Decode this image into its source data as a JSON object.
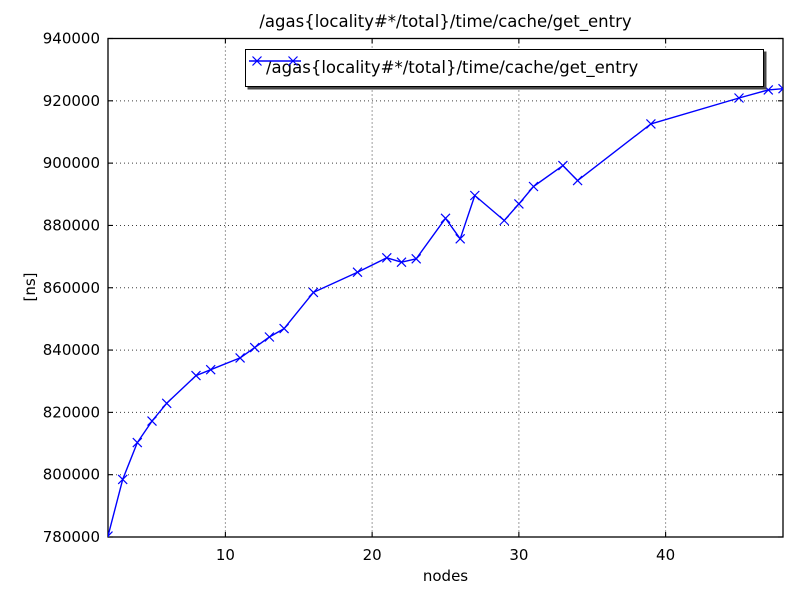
{
  "figure": {
    "title": "/agas{locality#*/total}/time/cache/get_entry",
    "xlabel": "nodes",
    "ylabel": "[ns]",
    "legend": {
      "label": "/agas{locality#*/total}/time/cache/get_entry",
      "position": "upper right",
      "sample_marker": "x"
    }
  },
  "colors": {
    "line": "#0000ff",
    "grid": "#3f3f3f",
    "spine": "#000000",
    "background": "#ffffff",
    "text": "#000000"
  },
  "chart_data": {
    "type": "line",
    "title": "/agas{locality#*/total}/time/cache/get_entry",
    "xlabel": "nodes",
    "ylabel": "[ns]",
    "grid": true,
    "grid_style": "dotted",
    "legend_position": "upper right",
    "xlim": [
      2,
      48
    ],
    "ylim": [
      780000,
      940000
    ],
    "xticks": [
      10,
      20,
      30,
      40
    ],
    "yticks": [
      780000,
      800000,
      820000,
      840000,
      860000,
      880000,
      900000,
      920000,
      940000
    ],
    "series": [
      {
        "name": "/agas{locality#*/total}/time/cache/get_entry",
        "color": "#0000ff",
        "marker": "x",
        "points": [
          [
            2,
            780300
          ],
          [
            3,
            798500
          ],
          [
            4,
            810300
          ],
          [
            5,
            817200
          ],
          [
            6,
            822900
          ],
          [
            8,
            831800
          ],
          [
            9,
            833700
          ],
          [
            11,
            837500
          ],
          [
            12,
            840800
          ],
          [
            13,
            844200
          ],
          [
            14,
            846900
          ],
          [
            16,
            858500
          ],
          [
            19,
            865000
          ],
          [
            21,
            869600
          ],
          [
            22,
            868200
          ],
          [
            23,
            869300
          ],
          [
            25,
            882300
          ],
          [
            26,
            875700
          ],
          [
            27,
            889600
          ],
          [
            29,
            881600
          ],
          [
            30,
            886900
          ],
          [
            31,
            892500
          ],
          [
            33,
            899200
          ],
          [
            34,
            894400
          ],
          [
            39,
            912600
          ],
          [
            45,
            920900
          ],
          [
            47,
            923500
          ],
          [
            48,
            923900
          ]
        ]
      }
    ]
  }
}
